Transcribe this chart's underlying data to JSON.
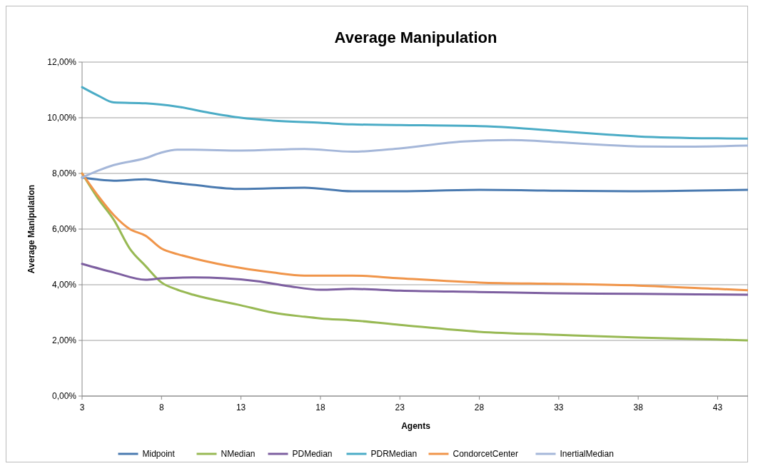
{
  "chart_data": {
    "type": "line",
    "title": "Average Manipulation",
    "xlabel": "Agents",
    "ylabel": "Average Manipulation",
    "xlim": [
      3,
      45
    ],
    "xticks": [
      3,
      8,
      13,
      18,
      23,
      28,
      33,
      38,
      43
    ],
    "ylim": [
      0,
      12
    ],
    "yticks": [
      {
        "value": 0,
        "label": "0,00%"
      },
      {
        "value": 2,
        "label": "2,00%"
      },
      {
        "value": 4,
        "label": "4,00%"
      },
      {
        "value": 6,
        "label": "6,00%"
      },
      {
        "value": 8,
        "label": "8,00%"
      },
      {
        "value": 10,
        "label": "10,00%"
      },
      {
        "value": 12,
        "label": "12,00%"
      }
    ],
    "grid": "y",
    "legend": "bottom",
    "marker": "none",
    "line_style": "solid",
    "series": [
      {
        "name": "Midpoint",
        "color": "#4a7ab0",
        "x": [
          3,
          5,
          7,
          8,
          10,
          13,
          17,
          20,
          23,
          28,
          33,
          38,
          45
        ],
        "values": [
          7.85,
          7.74,
          7.79,
          7.72,
          7.59,
          7.44,
          7.49,
          7.36,
          7.36,
          7.41,
          7.38,
          7.36,
          7.41
        ]
      },
      {
        "name": "NMedian",
        "color": "#98b954",
        "x": [
          3,
          4,
          5,
          6,
          7,
          8,
          9,
          10,
          13,
          15,
          17,
          18,
          20,
          23,
          28,
          33,
          38,
          43,
          45
        ],
        "values": [
          8.0,
          7.1,
          6.33,
          5.3,
          4.67,
          4.08,
          3.82,
          3.64,
          3.26,
          3.0,
          2.85,
          2.79,
          2.72,
          2.56,
          2.31,
          2.2,
          2.1,
          2.03,
          2.0
        ]
      },
      {
        "name": "PDMedian",
        "color": "#7d5fa0",
        "x": [
          3,
          5,
          7,
          8,
          10,
          12,
          14,
          16,
          18,
          20,
          23,
          28,
          33,
          38,
          45
        ],
        "values": [
          4.75,
          4.44,
          4.18,
          4.23,
          4.26,
          4.23,
          4.13,
          3.95,
          3.82,
          3.85,
          3.79,
          3.74,
          3.69,
          3.67,
          3.64
        ]
      },
      {
        "name": "PDRMedian",
        "color": "#4bacc6",
        "x": [
          3,
          4,
          5,
          7,
          9,
          11,
          13,
          15,
          18,
          20,
          23,
          28,
          30,
          33,
          36,
          38,
          43,
          45
        ],
        "values": [
          11.1,
          10.8,
          10.55,
          10.52,
          10.4,
          10.18,
          10.0,
          9.9,
          9.82,
          9.76,
          9.74,
          9.7,
          9.65,
          9.52,
          9.4,
          9.33,
          9.26,
          9.25
        ]
      },
      {
        "name": "CondorcetCenter",
        "color": "#f0954a",
        "x": [
          3,
          4,
          5,
          6,
          7,
          8,
          9,
          10,
          13,
          15,
          17,
          20,
          23,
          28,
          33,
          38,
          43,
          45
        ],
        "values": [
          8.0,
          7.2,
          6.5,
          6.0,
          5.76,
          5.3,
          5.1,
          4.95,
          4.6,
          4.44,
          4.33,
          4.33,
          4.23,
          4.08,
          4.03,
          3.97,
          3.85,
          3.8
        ]
      },
      {
        "name": "InertialMedian",
        "color": "#a5b7d9",
        "x": [
          3,
          4,
          5,
          7,
          8,
          9,
          10,
          13,
          17,
          20,
          23,
          27,
          30,
          33,
          36,
          38,
          40,
          45
        ],
        "values": [
          7.85,
          8.1,
          8.3,
          8.55,
          8.75,
          8.85,
          8.85,
          8.82,
          8.88,
          8.78,
          8.9,
          9.15,
          9.2,
          9.12,
          9.02,
          8.97,
          8.96,
          9.0
        ]
      }
    ]
  }
}
